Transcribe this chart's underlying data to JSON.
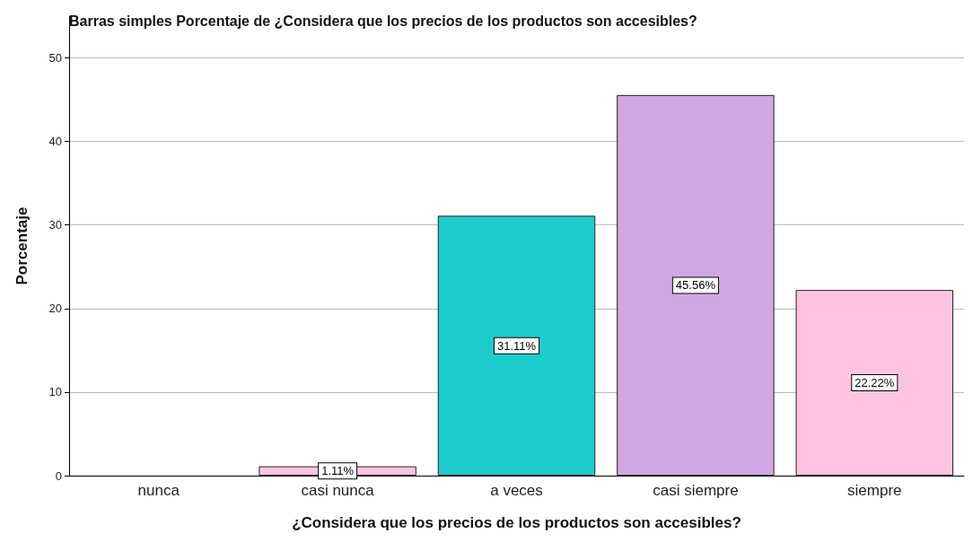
{
  "chart_data": {
    "type": "bar",
    "title": "Barras simples Porcentaje de ¿Considera que los precios de los productos son accesibles?",
    "xlabel": "¿Considera que los precios de los productos son accesibles?",
    "ylabel": "Porcentaje",
    "categories": [
      "nunca",
      "casi nunca",
      "a veces",
      "casi siempre",
      "siempre"
    ],
    "values": [
      0,
      1.11,
      31.11,
      45.56,
      22.22
    ],
    "colors": [
      "#ffc4e1",
      "#ffc4e1",
      "#1ccccc",
      "#d0a8e4",
      "#ffc4e1"
    ],
    "value_labels": [
      null,
      "1.11%",
      "31.11%",
      "45.56%",
      "22.22%"
    ],
    "ylim": [
      0,
      55
    ],
    "yticks": [
      0,
      10,
      20,
      30,
      40,
      50
    ],
    "grid": "y"
  }
}
